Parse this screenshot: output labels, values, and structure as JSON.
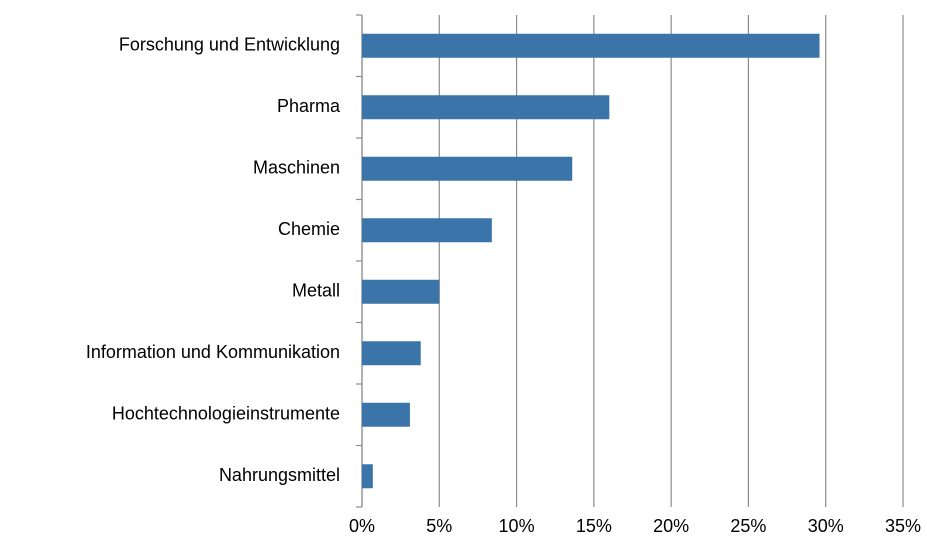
{
  "chart_data": {
    "type": "barh",
    "categories": [
      "Forschung und Entwicklung",
      "Pharma",
      "Maschinen",
      "Chemie",
      "Metall",
      "Information und Kommunikation",
      "Hochtechnologieinstrumente",
      "Nahrungsmittel"
    ],
    "values": [
      29.6,
      16.0,
      13.6,
      8.4,
      5.0,
      3.8,
      3.1,
      0.7
    ],
    "color": "#3a74a8",
    "xlim": [
      0,
      35
    ],
    "xticks": [
      {
        "value": 0,
        "label": "0%"
      },
      {
        "value": 5,
        "label": "5%"
      },
      {
        "value": 10,
        "label": "10%"
      },
      {
        "value": 15,
        "label": "15%"
      },
      {
        "value": 20,
        "label": "20%"
      },
      {
        "value": 25,
        "label": "25%"
      },
      {
        "value": 30,
        "label": "30%"
      },
      {
        "value": 35,
        "label": "35%"
      }
    ],
    "grid": true
  }
}
